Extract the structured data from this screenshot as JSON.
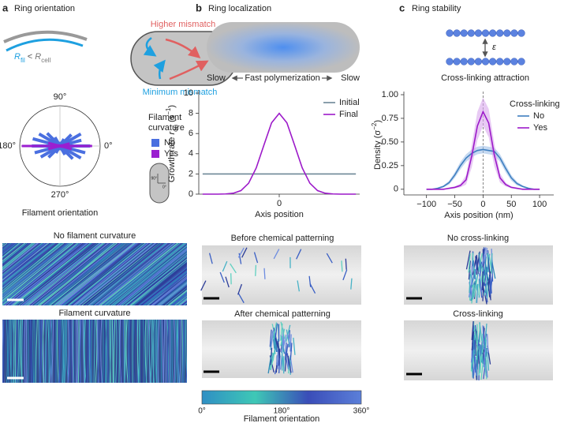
{
  "panels": {
    "a": {
      "label": "a",
      "title": "Ring orientation",
      "diagram": {
        "r": "R",
        "fil": "fil",
        "lt": " < ",
        "r2": "R",
        "cell": "cell",
        "higher": "Higher mismatch",
        "minimum": "Minimum mismatch"
      },
      "inset": {
        "t90": "90°",
        "t0": "0°"
      },
      "images": [
        "No filament curvature",
        "Filament curvature"
      ]
    },
    "b": {
      "label": "b",
      "title": "Ring localization",
      "arrow_labels": [
        "Slow",
        "Fast polymerization",
        "Slow"
      ],
      "images": [
        "Before chemical patterning",
        "After chemical patterning"
      ],
      "colorbar": {
        "ticks": [
          "0°",
          "180°",
          "360°"
        ],
        "label": "Filament orientation",
        "colors": [
          "#2f8fc4",
          "#3ec8b6",
          "#3a4db8",
          "#5b7fd9"
        ]
      }
    },
    "c": {
      "label": "c",
      "title": "Ring stability",
      "epsilon": "ε",
      "diagram_label": "Cross-linking attraction",
      "images": [
        "No cross-linking",
        "Cross-linking"
      ]
    }
  },
  "chart_data": [
    {
      "type": "polar-bar",
      "xlabel": "Filament orientation",
      "x": [
        0,
        15,
        30,
        45,
        60,
        75,
        90,
        105,
        120,
        135,
        150,
        165,
        180,
        195,
        210,
        225,
        240,
        255,
        270,
        285,
        300,
        315,
        330,
        345
      ],
      "xticks": [
        {
          "value": 0,
          "label": "0°"
        },
        {
          "value": 90,
          "label": "90°"
        },
        {
          "value": 180,
          "label": "180°"
        },
        {
          "value": 270,
          "label": "270°"
        }
      ],
      "rlim": [
        0,
        1
      ],
      "legend_title": [
        "Filament",
        "curvature"
      ],
      "series": [
        {
          "name": "No",
          "color": "#4a6fe0",
          "values": [
            0.75,
            0.55,
            0.6,
            0.4,
            0.2,
            0.1,
            0.05,
            0.1,
            0.25,
            0.45,
            0.6,
            0.7,
            0.7,
            0.65,
            0.55,
            0.4,
            0.2,
            0.1,
            0.05,
            0.1,
            0.25,
            0.45,
            0.6,
            0.65
          ]
        },
        {
          "name": "Yes",
          "color": "#9b1fd0",
          "values": [
            0.8,
            0.25,
            0.05,
            0,
            0,
            0,
            0,
            0,
            0,
            0,
            0.05,
            0.3,
            0.95,
            0.3,
            0.05,
            0,
            0,
            0,
            0,
            0,
            0,
            0,
            0.05,
            0.3
          ]
        }
      ]
    },
    {
      "type": "line",
      "xlabel": "Axis position",
      "ylabel": {
        "text": "Growth rate ",
        "var": "r",
        "sub": "on",
        "unit": " (s",
        "sup": "−1",
        "close": ")"
      },
      "x": [
        -1,
        -0.9,
        -0.8,
        -0.7,
        -0.6,
        -0.5,
        -0.4,
        -0.3,
        -0.2,
        -0.1,
        0,
        0.1,
        0.2,
        0.3,
        0.4,
        0.5,
        0.6,
        0.7,
        0.8,
        0.9,
        1
      ],
      "xlim": [
        -1.05,
        1.05
      ],
      "xticks": [
        0
      ],
      "ylim": [
        0,
        10
      ],
      "yticks": [
        0,
        2,
        4,
        6,
        8,
        10
      ],
      "legend": "upper right",
      "series": [
        {
          "name": "Initial",
          "color": "#6d8797",
          "values": [
            2,
            2,
            2,
            2,
            2,
            2,
            2,
            2,
            2,
            2,
            2,
            2,
            2,
            2,
            2,
            2,
            2,
            2,
            2,
            2,
            2
          ]
        },
        {
          "name": "Final",
          "color": "#9c19c9",
          "values": [
            0,
            0,
            0,
            0.02,
            0.09,
            0.35,
            1.08,
            2.6,
            4.85,
            7.06,
            8,
            7.06,
            4.85,
            2.6,
            1.08,
            0.35,
            0.09,
            0.02,
            0,
            0,
            0
          ]
        }
      ]
    },
    {
      "type": "line",
      "xlabel": "Axis position (nm)",
      "ylabel": {
        "text": "Density ",
        "unit": "(σ",
        "sup": "−2",
        "close": ")"
      },
      "x": [
        -100,
        -90,
        -80,
        -70,
        -60,
        -50,
        -40,
        -30,
        -20,
        -10,
        0,
        10,
        20,
        30,
        40,
        50,
        60,
        70,
        80,
        90,
        100
      ],
      "xlim": [
        -140,
        125
      ],
      "xticks": [
        {
          "value": -100,
          "label": "−100"
        },
        {
          "value": -50,
          "label": "−50"
        },
        0,
        50,
        100
      ],
      "ylim": [
        -0.06,
        1.0
      ],
      "yticks": [
        0,
        0.25,
        {
          "value": 0.5,
          "label": "0.50"
        },
        0.75,
        {
          "value": 1,
          "label": "1.00"
        }
      ],
      "vline": 0,
      "legend": "upper right",
      "legend_title": "Cross-linking",
      "series": [
        {
          "name": "No",
          "color": "#3f7fc0",
          "band_color": "#9fc0e8",
          "values": [
            0,
            0,
            0.01,
            0.03,
            0.07,
            0.15,
            0.25,
            0.33,
            0.38,
            0.41,
            0.42,
            0.41,
            0.4,
            0.33,
            0.22,
            0.12,
            0.06,
            0.03,
            0.01,
            0,
            0
          ],
          "errors": [
            0,
            0,
            0.01,
            0.01,
            0.02,
            0.03,
            0.04,
            0.04,
            0.04,
            0.04,
            0.04,
            0.04,
            0.04,
            0.04,
            0.04,
            0.03,
            0.02,
            0.01,
            0.01,
            0,
            0
          ]
        },
        {
          "name": "Yes",
          "color": "#9c19c9",
          "band_color": "#d9a6ec",
          "values": [
            0,
            0,
            0,
            0,
            0.01,
            0.02,
            0.04,
            0.1,
            0.35,
            0.67,
            0.82,
            0.7,
            0.36,
            0.12,
            0.05,
            0.02,
            0.01,
            0,
            0,
            0,
            0
          ],
          "errors": [
            0,
            0,
            0,
            0,
            0.01,
            0.01,
            0.02,
            0.05,
            0.12,
            0.15,
            0.15,
            0.15,
            0.12,
            0.05,
            0.02,
            0.01,
            0.01,
            0,
            0,
            0,
            0
          ]
        }
      ]
    }
  ]
}
